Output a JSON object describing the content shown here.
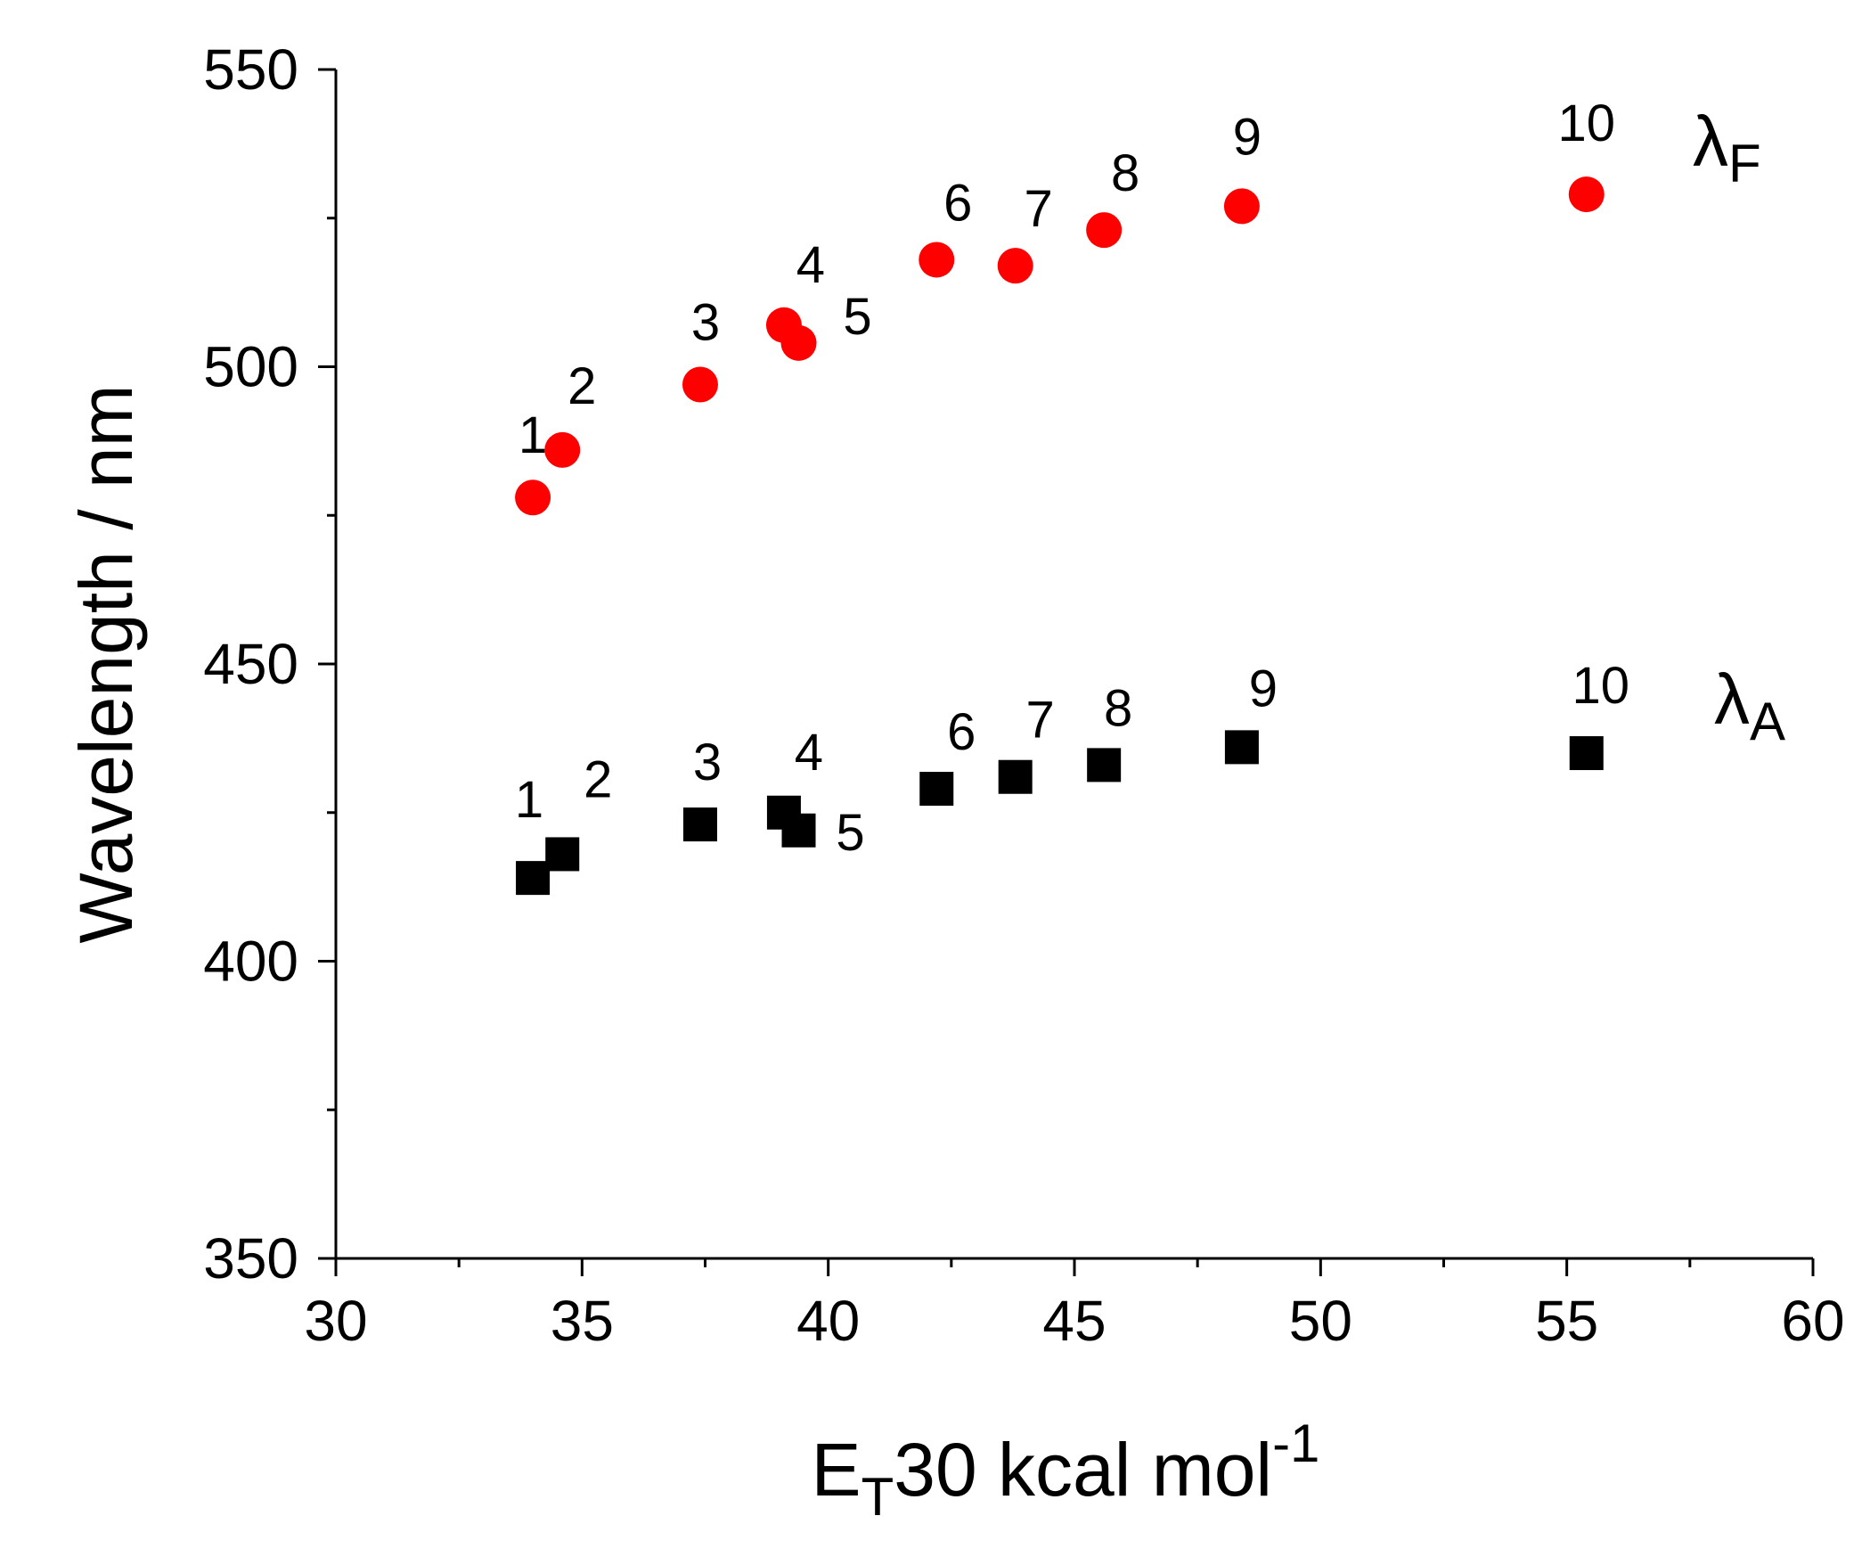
{
  "chart_data": {
    "type": "scatter",
    "title": "",
    "xlabel": {
      "main": "E",
      "sub": "T",
      "rest": "30 kcal mol",
      "sup": "-1"
    },
    "ylabel": "Wavelength / nm",
    "xlim": [
      30,
      60
    ],
    "ylim": [
      350,
      550
    ],
    "x_major_ticks": [
      30,
      35,
      40,
      45,
      50,
      55,
      60
    ],
    "x_tick_labels": [
      "30",
      "35",
      "40",
      "45",
      "50",
      "55",
      "60"
    ],
    "x_minor_step": 2.5,
    "y_major_ticks": [
      350,
      400,
      450,
      500,
      550
    ],
    "y_tick_labels": [
      "350",
      "400",
      "450",
      "500",
      "550"
    ],
    "y_minor_step": 25,
    "grid": false,
    "series": [
      {
        "name": "lambda_F",
        "label_symbol": "λ",
        "label_sub": "F",
        "marker": "circle",
        "color": "#ff0000",
        "points": [
          {
            "id": "1",
            "x": 34.0,
            "y": 478
          },
          {
            "id": "2",
            "x": 34.6,
            "y": 486
          },
          {
            "id": "3",
            "x": 37.4,
            "y": 497
          },
          {
            "id": "4",
            "x": 39.1,
            "y": 507
          },
          {
            "id": "5",
            "x": 39.4,
            "y": 504
          },
          {
            "id": "6",
            "x": 42.2,
            "y": 518
          },
          {
            "id": "7",
            "x": 43.8,
            "y": 517
          },
          {
            "id": "8",
            "x": 45.6,
            "y": 523
          },
          {
            "id": "9",
            "x": 48.4,
            "y": 527
          },
          {
            "id": "10",
            "x": 55.4,
            "y": 529
          }
        ]
      },
      {
        "name": "lambda_A",
        "label_symbol": "λ",
        "label_sub": "A",
        "marker": "square",
        "color": "#000000",
        "points": [
          {
            "id": "1",
            "x": 34.0,
            "y": 414
          },
          {
            "id": "2",
            "x": 34.6,
            "y": 418
          },
          {
            "id": "3",
            "x": 37.4,
            "y": 423
          },
          {
            "id": "4",
            "x": 39.1,
            "y": 425
          },
          {
            "id": "5",
            "x": 39.4,
            "y": 422
          },
          {
            "id": "6",
            "x": 42.2,
            "y": 429
          },
          {
            "id": "7",
            "x": 43.8,
            "y": 431
          },
          {
            "id": "8",
            "x": 45.6,
            "y": 433
          },
          {
            "id": "9",
            "x": 48.4,
            "y": 436
          },
          {
            "id": "10",
            "x": 55.4,
            "y": 435
          }
        ]
      }
    ]
  }
}
